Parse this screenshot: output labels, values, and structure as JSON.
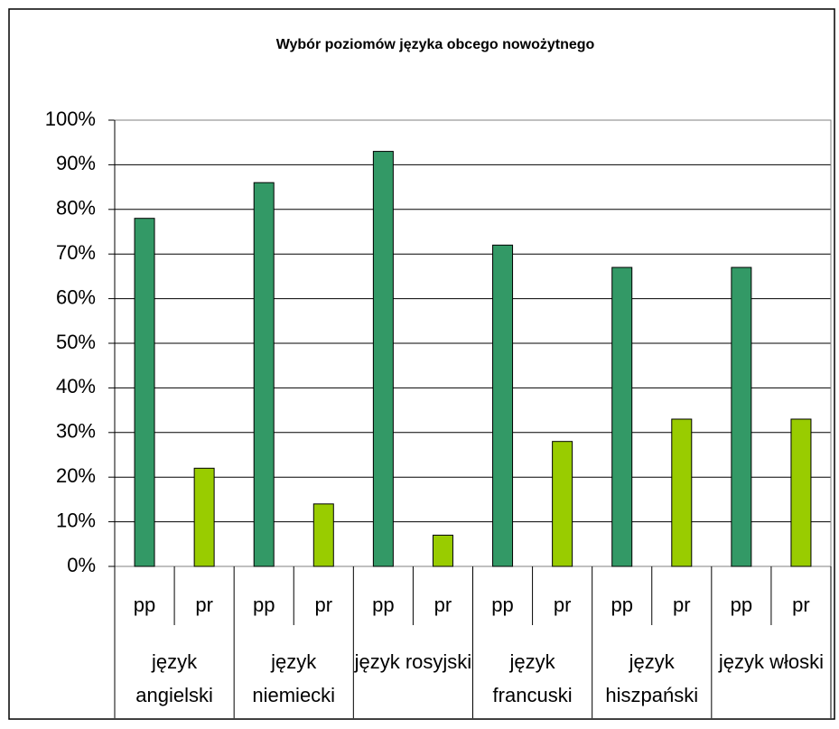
{
  "chart_data": {
    "type": "bar",
    "title": "Wybór poziomów języka obcego nowożytnego",
    "categories": [
      "pp",
      "pr",
      "pp",
      "pr",
      "pp",
      "pr",
      "pp",
      "pr",
      "pp",
      "pr",
      "pp",
      "pr"
    ],
    "groups": [
      "język angielski",
      "język niemiecki",
      "język rosyjski",
      "język francuski",
      "język hiszpański",
      "język włoski"
    ],
    "values": [
      78,
      22,
      86,
      14,
      93,
      7,
      72,
      28,
      67,
      33,
      67,
      33
    ],
    "colors": [
      "#339966",
      "#99cc00",
      "#339966",
      "#99cc00",
      "#339966",
      "#99cc00",
      "#339966",
      "#99cc00",
      "#339966",
      "#99cc00",
      "#339966",
      "#99cc00"
    ],
    "ylim": [
      0,
      100
    ],
    "yticks": [
      {
        "value": 0,
        "label": "0%"
      },
      {
        "value": 10,
        "label": "10%"
      },
      {
        "value": 20,
        "label": "20%"
      },
      {
        "value": 30,
        "label": "30%"
      },
      {
        "value": 40,
        "label": "40%"
      },
      {
        "value": 50,
        "label": "50%"
      },
      {
        "value": 60,
        "label": "60%"
      },
      {
        "value": 70,
        "label": "70%"
      },
      {
        "value": 80,
        "label": "80%"
      },
      {
        "value": 90,
        "label": "90%"
      },
      {
        "value": 100,
        "label": "100%"
      }
    ],
    "grid": true
  }
}
